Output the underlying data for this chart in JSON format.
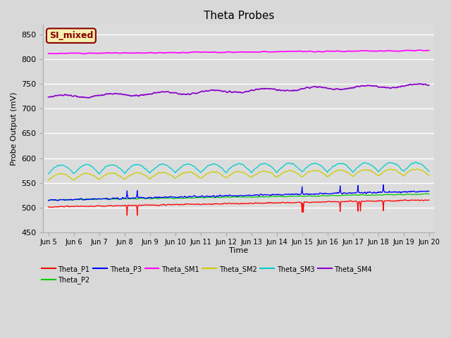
{
  "title": "Theta Probes",
  "xlabel": "Time",
  "ylabel": "Probe Output (mV)",
  "ylim": [
    450,
    870
  ],
  "xlim_days": [
    4.8,
    20.2
  ],
  "background_color": "#dcdcdc",
  "fig_bg": "#d8d8d8",
  "annotation_text": "SI_mixed",
  "annotation_bg": "#f5f0b0",
  "annotation_border": "#8b0000",
  "series_colors": {
    "Theta_P1": "#ff0000",
    "Theta_P2": "#00cc00",
    "Theta_P3": "#0000ff",
    "Theta_SM1": "#ff00ff",
    "Theta_SM2": "#cccc00",
    "Theta_SM3": "#00cccc",
    "Theta_SM4": "#8800cc"
  },
  "xtick_labels": [
    "Jun 5",
    "Jun 6",
    "Jun 7",
    "Jun 8",
    "Jun 9",
    "Jun 10",
    "Jun 11",
    "Jun 12",
    "Jun 13",
    "Jun 14",
    "Jun 15",
    "Jun 16",
    "Jun 17",
    "Jun 18",
    "Jun 19",
    "Jun 20"
  ],
  "xtick_days": [
    5,
    6,
    7,
    8,
    9,
    10,
    11,
    12,
    13,
    14,
    15,
    16,
    17,
    18,
    19,
    20
  ],
  "ytick_labels": [
    450,
    500,
    550,
    600,
    650,
    700,
    750,
    800,
    850
  ],
  "title_fontsize": 11,
  "axis_label_fontsize": 8,
  "tick_fontsize": 8,
  "legend_fontsize": 8
}
